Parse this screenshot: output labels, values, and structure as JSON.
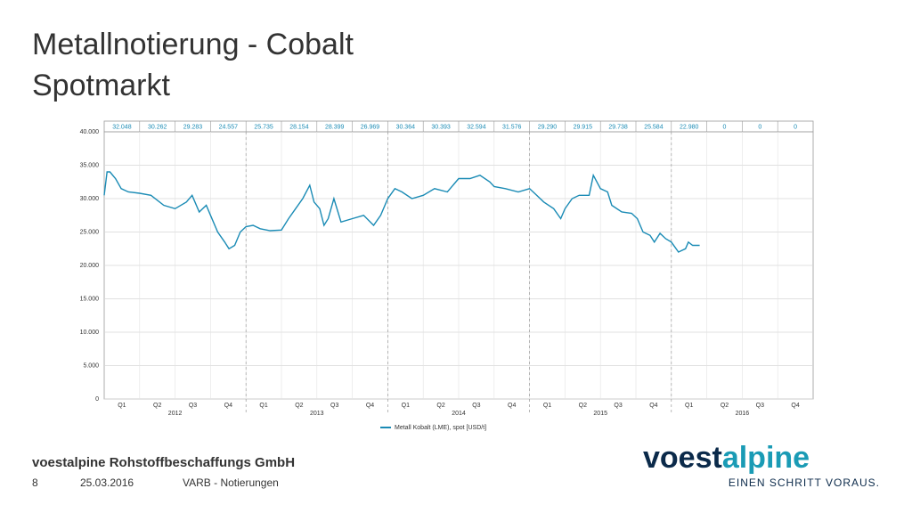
{
  "header": {
    "title": [
      "Metallnotierung - Cobalt",
      "Spotmarkt"
    ]
  },
  "chart_data": {
    "type": "line",
    "quarters": [
      "Q1",
      "Q2",
      "Q3",
      "Q4",
      "Q1",
      "Q2",
      "Q3",
      "Q4",
      "Q1",
      "Q2",
      "Q3",
      "Q4",
      "Q1",
      "Q2",
      "Q3",
      "Q4",
      "Q1",
      "Q2",
      "Q3",
      "Q4"
    ],
    "years": [
      "2012",
      "2013",
      "2014",
      "2015",
      "2016"
    ],
    "quarter_averages": {
      "values": [
        32048,
        30262,
        29283,
        24557,
        25735,
        28154,
        28399,
        26969,
        30364,
        30393,
        32594,
        31576,
        29290,
        29915,
        29738,
        25584,
        22980,
        0,
        0,
        0
      ],
      "value_labels": [
        "32.048",
        "30.262",
        "29.283",
        "24.557",
        "25.735",
        "28.154",
        "28.399",
        "26.969",
        "30.364",
        "30.393",
        "32.594",
        "31.576",
        "29.290",
        "29.915",
        "29.738",
        "25.584",
        "22.980",
        "0",
        "0",
        "0"
      ]
    },
    "xlim": [
      2012,
      2017
    ],
    "ylim": [
      0,
      40000
    ],
    "yticks": [
      0,
      {
        "value": 5000,
        "label": "5.000"
      },
      {
        "value": 10000,
        "label": "10.000"
      },
      {
        "value": 15000,
        "label": "15.000"
      },
      {
        "value": 20000,
        "label": "20.000"
      },
      {
        "value": 25000,
        "label": "25.000"
      },
      {
        "value": 30000,
        "label": "30.000"
      },
      {
        "value": 35000,
        "label": "35.000"
      },
      {
        "value": 40000,
        "label": "40.000"
      }
    ],
    "grid": true,
    "series": [
      {
        "name": "Metall Kobalt (LME), spot [USD/t]",
        "color": "#1a8bb5",
        "x": [
          2012.0,
          2012.02,
          2012.04,
          2012.08,
          2012.12,
          2012.17,
          2012.25,
          2012.33,
          2012.42,
          2012.5,
          2012.58,
          2012.62,
          2012.67,
          2012.72,
          2012.75,
          2012.8,
          2012.85,
          2012.88,
          2012.92,
          2012.96,
          2013.0,
          2013.05,
          2013.1,
          2013.17,
          2013.25,
          2013.3,
          2013.35,
          2013.4,
          2013.45,
          2013.48,
          2013.52,
          2013.55,
          2013.58,
          2013.62,
          2013.67,
          2013.75,
          2013.83,
          2013.9,
          2013.95,
          2014.0,
          2014.05,
          2014.1,
          2014.17,
          2014.25,
          2014.33,
          2014.42,
          2014.5,
          2014.58,
          2014.65,
          2014.72,
          2014.75,
          2014.83,
          2014.92,
          2015.0,
          2015.05,
          2015.1,
          2015.17,
          2015.22,
          2015.25,
          2015.3,
          2015.35,
          2015.42,
          2015.45,
          2015.5,
          2015.55,
          2015.58,
          2015.65,
          2015.72,
          2015.76,
          2015.8,
          2015.85,
          2015.88,
          2015.92,
          2015.96,
          2016.0,
          2016.05,
          2016.1,
          2016.12,
          2016.15,
          2016.2
        ],
        "values": [
          30500,
          34000,
          34000,
          33000,
          31500,
          31000,
          30800,
          30500,
          29000,
          28500,
          29500,
          30500,
          28000,
          29000,
          27500,
          25000,
          23500,
          22500,
          23000,
          25000,
          25800,
          26000,
          25500,
          25200,
          25300,
          27000,
          28500,
          30000,
          32000,
          29500,
          28500,
          26000,
          27000,
          30000,
          26500,
          27000,
          27500,
          26000,
          27500,
          30000,
          31500,
          31000,
          30000,
          30500,
          31500,
          31000,
          33000,
          33000,
          33500,
          32500,
          31800,
          31500,
          31000,
          31500,
          30500,
          29500,
          28500,
          27000,
          28500,
          30000,
          30500,
          30500,
          33500,
          31500,
          31000,
          29000,
          28000,
          27800,
          27000,
          25000,
          24500,
          23500,
          24800,
          24000,
          23500,
          22000,
          22500,
          23500,
          23000,
          23000
        ]
      }
    ]
  },
  "footer": {
    "company": "voestalpine Rohstoffbeschaffungs GmbH",
    "page": "8",
    "date": "25.03.2016",
    "section": "VARB - Notierungen"
  },
  "logo": {
    "part1": "voest",
    "part2": "alpine",
    "slogan": "EINEN SCHRITT VORAUS."
  }
}
